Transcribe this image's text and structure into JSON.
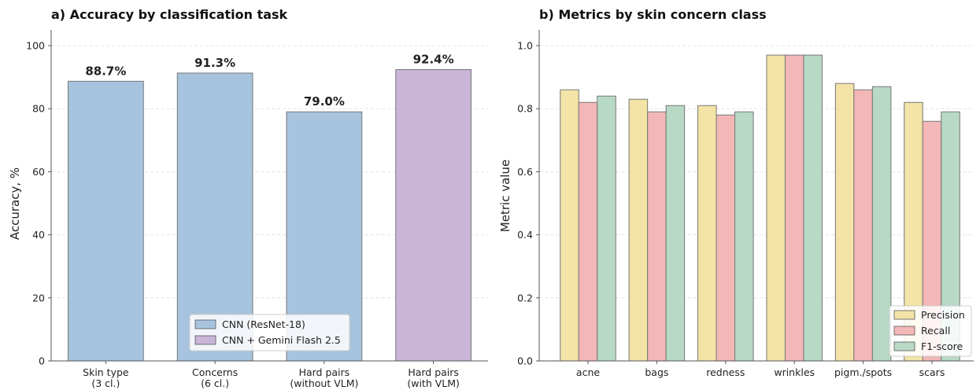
{
  "chart_data": [
    {
      "type": "bar",
      "title": "a) Accuracy by classification task",
      "xlabel": "",
      "ylabel": "Accuracy, %",
      "ylim": [
        0,
        105
      ],
      "yticks": [
        "0",
        "20",
        "40",
        "60",
        "80",
        "100"
      ],
      "categories": [
        [
          "Skin type",
          "(3 cl.)"
        ],
        [
          "Concerns",
          "(6 cl.)"
        ],
        [
          "Hard pairs",
          "(without VLM)"
        ],
        [
          "Hard pairs",
          "(with VLM)"
        ]
      ],
      "values": [
        88.7,
        91.3,
        79.0,
        92.4
      ],
      "value_labels": [
        "88.7%",
        "91.3%",
        "79.0%",
        "92.4%"
      ],
      "bar_series": [
        0,
        0,
        0,
        1
      ],
      "series": [
        {
          "name": "CNN (ResNet-18)",
          "color": "#a7c3de"
        },
        {
          "name": "CNN + Gemini Flash 2.5",
          "color": "#c9b5d8"
        }
      ],
      "grid": "y-dashed",
      "legend": "bottom-center"
    },
    {
      "type": "bar",
      "title": "b) Metrics by skin concern class",
      "xlabel": "",
      "ylabel": "Metric value",
      "ylim": [
        0,
        1.05
      ],
      "yticks": [
        "0.0",
        "0.2",
        "0.4",
        "0.6",
        "0.8",
        "1.0"
      ],
      "categories": [
        "acne",
        "bags",
        "redness",
        "wrinkles",
        "pigm./spots",
        "scars"
      ],
      "series": [
        {
          "name": "Precision",
          "color": "#f3e3a6",
          "values": [
            0.86,
            0.83,
            0.81,
            0.97,
            0.88,
            0.82
          ]
        },
        {
          "name": "Recall",
          "color": "#f3b7b7",
          "values": [
            0.82,
            0.79,
            0.78,
            0.97,
            0.86,
            0.76
          ]
        },
        {
          "name": "F1-score",
          "color": "#b7d9c6",
          "values": [
            0.84,
            0.81,
            0.79,
            0.97,
            0.87,
            0.79
          ]
        }
      ],
      "grid": "y-dashed",
      "legend": "bottom-right"
    }
  ]
}
